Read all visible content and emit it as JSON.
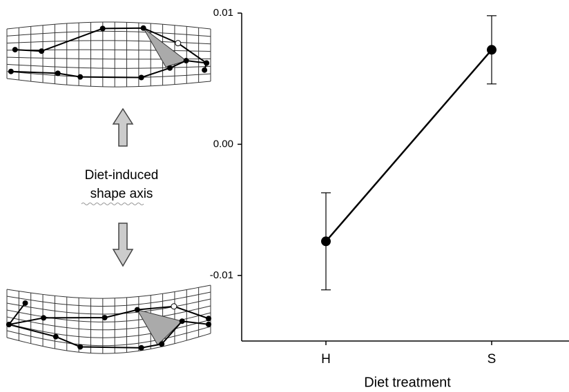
{
  "chart_data": {
    "type": "line",
    "x_label": "Diet treatment",
    "categories": [
      "H",
      "S"
    ],
    "values": [
      -0.0074,
      0.0072
    ],
    "errors": [
      0.0037,
      0.0026
    ],
    "color": "#000000",
    "ylim": [
      -0.015,
      0.01
    ],
    "yticks": [
      {
        "value": -0.01,
        "label": "-0.01"
      },
      {
        "value": 0,
        "label": "0.00"
      },
      {
        "value": 0.01,
        "label": "0.01"
      }
    ],
    "annotation": [
      "Diet-induced",
      "shape axis"
    ]
  }
}
